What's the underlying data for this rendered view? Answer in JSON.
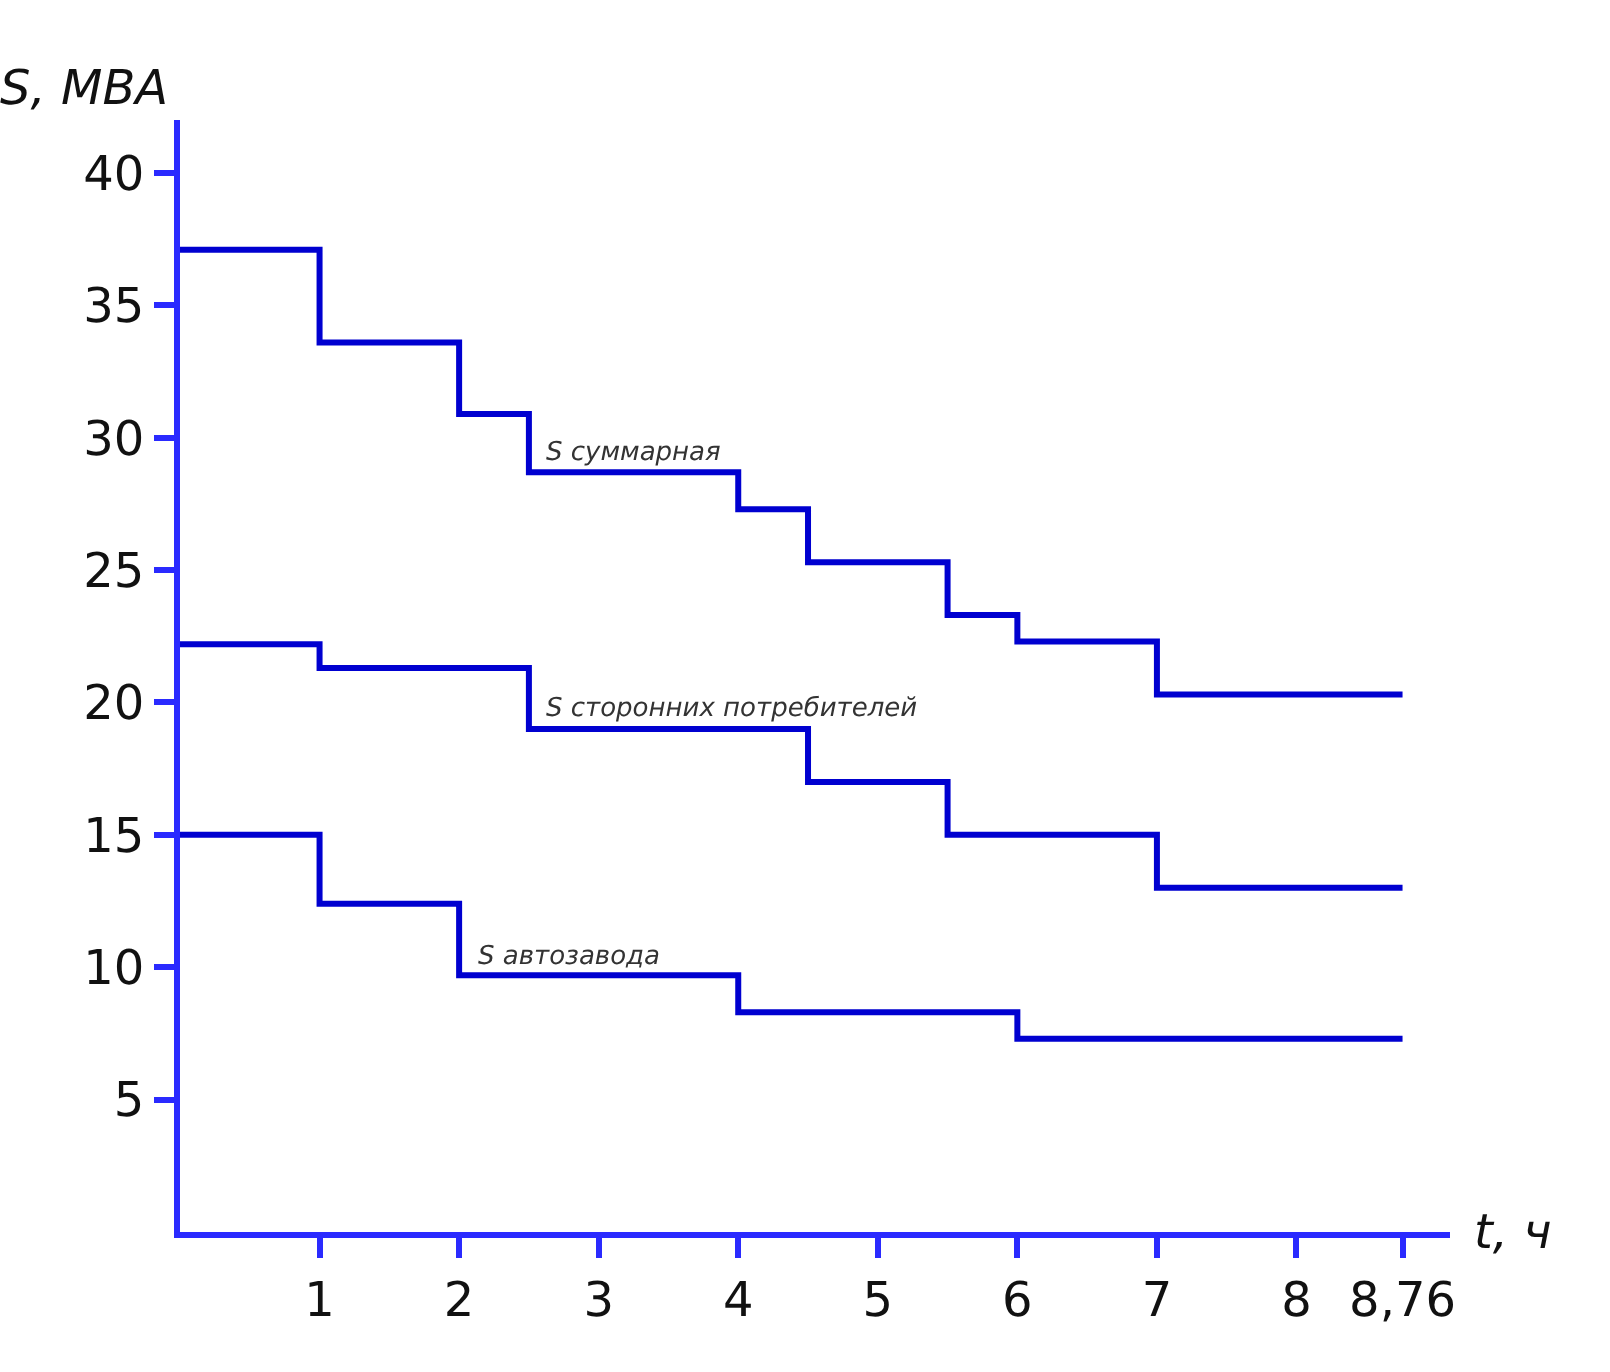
{
  "chart_data": {
    "type": "step",
    "xlabel": "t, ч",
    "ylabel": "S, MBA",
    "xlim": [
      0,
      9.1
    ],
    "ylim": [
      0,
      42
    ],
    "xticks": [
      1,
      2,
      3,
      4,
      5,
      6,
      7,
      8,
      {
        "value": 8.76,
        "label": "8,76"
      }
    ],
    "yticks": [
      5,
      10,
      15,
      20,
      25,
      30,
      35,
      40
    ],
    "legend": false,
    "marker": "none",
    "line_style": "solid",
    "series": [
      {
        "name": "S суммарная",
        "color": "#0000d0",
        "x": [
          0,
          1,
          2,
          2.5,
          4,
          4.5,
          5.5,
          6,
          7,
          8.76
        ],
        "values": [
          37.1,
          33.6,
          30.9,
          28.7,
          27.3,
          25.3,
          23.3,
          22.3,
          20.3,
          20.3
        ]
      },
      {
        "name": "S сторонних потребителей",
        "color": "#0000d0",
        "x": [
          0,
          1,
          2.5,
          4.5,
          5.5,
          7,
          8.76
        ],
        "values": [
          22.2,
          21.3,
          19.0,
          17.0,
          15.0,
          13.0,
          13.0
        ]
      },
      {
        "name": "S автозавода",
        "color": "#0000d0",
        "x": [
          0,
          1,
          2,
          4,
          6,
          8.76
        ],
        "values": [
          15.0,
          12.4,
          9.7,
          8.3,
          7.3,
          7.3
        ]
      }
    ]
  }
}
